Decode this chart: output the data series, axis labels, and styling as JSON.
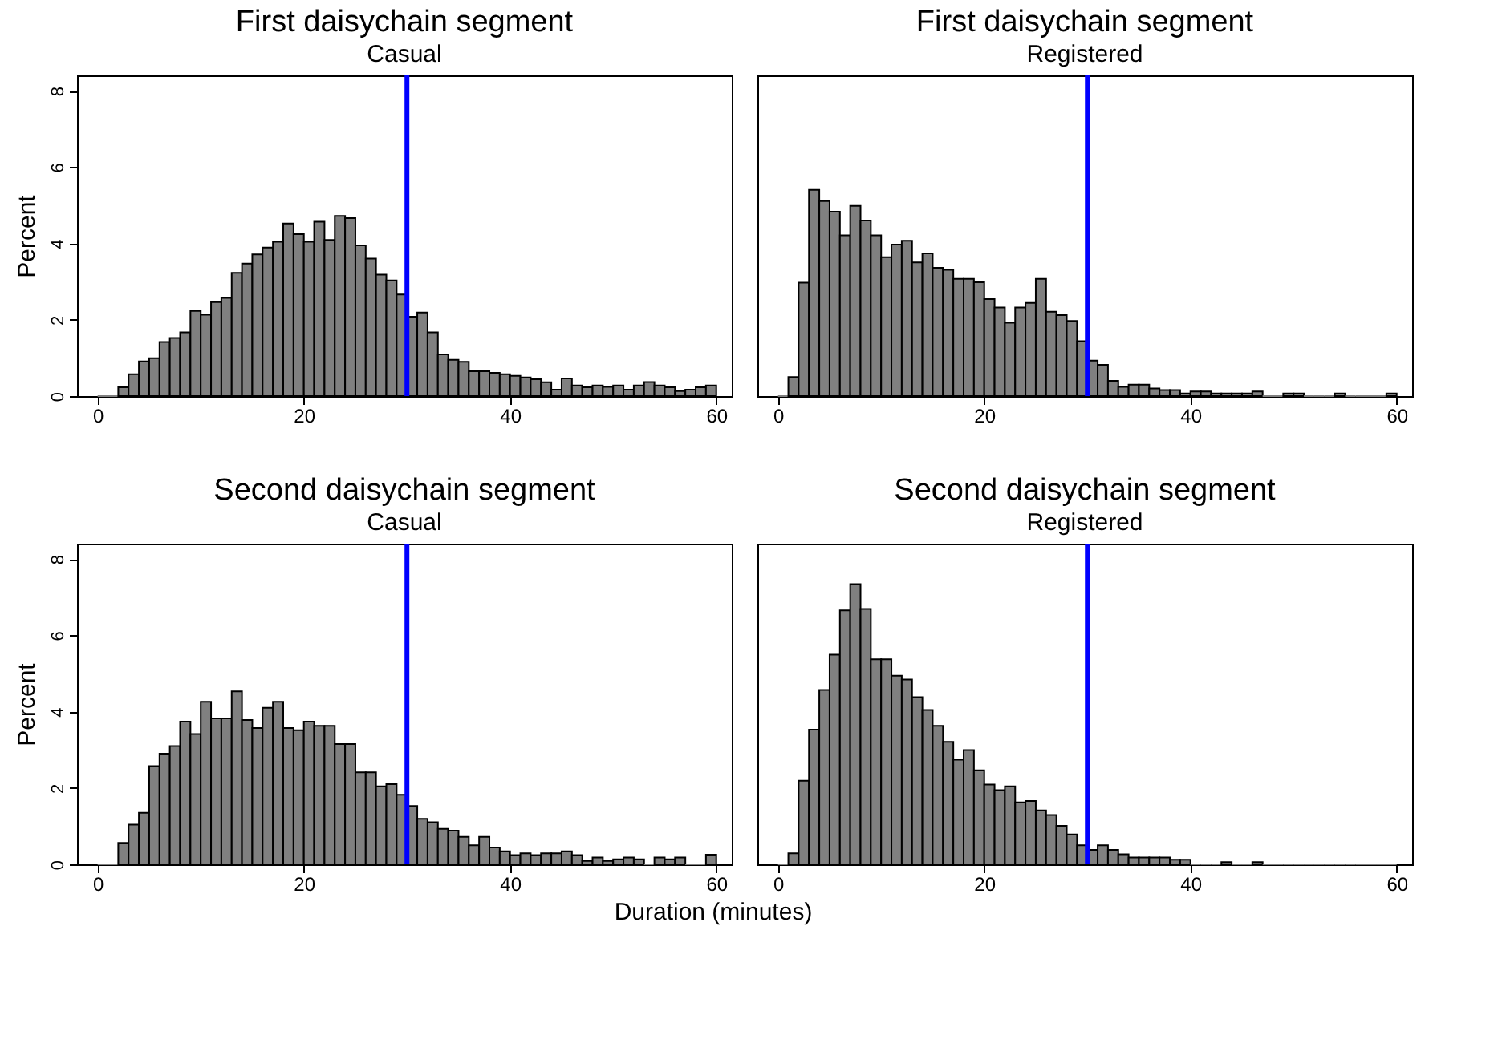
{
  "chart_data": [
    {
      "type": "histogram",
      "title": "First daisychain segment",
      "subtitle": "Casual",
      "ylabel": "Percent",
      "color": "#808080",
      "bins": [
        0,
        1,
        2,
        3,
        4,
        5,
        6,
        7,
        8,
        9,
        10,
        11,
        12,
        13,
        14,
        15,
        16,
        17,
        18,
        19,
        20,
        21,
        22,
        23,
        24,
        25,
        26,
        27,
        28,
        29,
        30,
        31,
        32,
        33,
        34,
        35,
        36,
        37,
        38,
        39,
        40,
        41,
        42,
        43,
        44,
        45,
        46,
        47,
        48,
        49,
        50,
        51,
        52,
        53,
        54,
        55,
        56,
        57,
        58,
        59,
        60
      ],
      "values": [
        0,
        0,
        0.23,
        0.57,
        0.91,
        0.99,
        1.42,
        1.52,
        1.67,
        2.23,
        2.13,
        2.46,
        2.57,
        3.23,
        3.47,
        3.71,
        3.89,
        4.04,
        4.52,
        4.24,
        4.04,
        4.57,
        4.09,
        4.72,
        4.66,
        3.95,
        3.6,
        3.18,
        3.03,
        2.66,
        2.08,
        2.19,
        1.67,
        1.09,
        0.95,
        0.9,
        0.65,
        0.65,
        0.61,
        0.57,
        0.53,
        0.49,
        0.44,
        0.36,
        0.17,
        0.46,
        0.28,
        0.23,
        0.28,
        0.24,
        0.28,
        0.17,
        0.28,
        0.37,
        0.28,
        0.23,
        0.13,
        0.17,
        0.23,
        0.28
      ],
      "xlim": [
        -2,
        61.5
      ],
      "xticks": [
        0,
        20,
        40,
        60
      ],
      "ylim": [
        0,
        8.4
      ],
      "yticks": [
        0,
        2,
        4,
        6,
        8
      ],
      "ref_lines": [
        {
          "axis": "x",
          "value": 30,
          "color": "#0000ff"
        }
      ]
    },
    {
      "type": "histogram",
      "title": "First daisychain segment",
      "subtitle": "Registered",
      "color": "#808080",
      "bins": [
        0,
        1,
        2,
        3,
        4,
        5,
        6,
        7,
        8,
        9,
        10,
        11,
        12,
        13,
        14,
        15,
        16,
        17,
        18,
        19,
        20,
        21,
        22,
        23,
        24,
        25,
        26,
        27,
        28,
        29,
        30,
        31,
        32,
        33,
        34,
        35,
        36,
        37,
        38,
        39,
        40,
        41,
        42,
        43,
        44,
        45,
        46,
        47,
        48,
        49,
        50,
        51,
        52,
        53,
        54,
        55,
        56,
        57,
        58,
        59,
        60
      ],
      "values": [
        0,
        0.5,
        2.97,
        5.4,
        5.11,
        4.83,
        4.21,
        4.98,
        4.6,
        4.21,
        3.64,
        3.97,
        4.07,
        3.5,
        3.74,
        3.36,
        3.31,
        3.07,
        3.07,
        2.98,
        2.54,
        2.32,
        1.92,
        2.32,
        2.44,
        3.07,
        2.21,
        2.12,
        1.97,
        1.44,
        0.93,
        0.82,
        0.4,
        0.24,
        0.3,
        0.3,
        0.2,
        0.16,
        0.16,
        0.07,
        0.12,
        0.12,
        0.07,
        0.07,
        0.07,
        0.07,
        0.12,
        0,
        0,
        0.07,
        0.07,
        0,
        0,
        0,
        0.07,
        0,
        0,
        0,
        0,
        0.07
      ],
      "xlim": [
        -2,
        61.5
      ],
      "xticks": [
        0,
        20,
        40,
        60
      ],
      "ylim": [
        0,
        8.4
      ],
      "yticks": [
        0,
        2,
        4,
        6,
        8
      ],
      "tick_labels": "x",
      "ref_lines": [
        {
          "axis": "x",
          "value": 30,
          "color": "#0000ff"
        }
      ]
    },
    {
      "type": "histogram",
      "title": "Second daisychain segment",
      "subtitle": "Casual",
      "ylabel": "Percent",
      "xlabel": "Duration (minutes)",
      "color": "#808080",
      "bins": [
        0,
        1,
        2,
        3,
        4,
        5,
        6,
        7,
        8,
        9,
        10,
        11,
        12,
        13,
        14,
        15,
        16,
        17,
        18,
        19,
        20,
        21,
        22,
        23,
        24,
        25,
        26,
        27,
        28,
        29,
        30,
        31,
        32,
        33,
        34,
        35,
        36,
        37,
        38,
        39,
        40,
        41,
        42,
        43,
        44,
        45,
        46,
        47,
        48,
        49,
        50,
        51,
        52,
        53,
        54,
        55,
        56,
        57,
        58,
        59,
        60
      ],
      "values": [
        0,
        0,
        0.56,
        1.04,
        1.35,
        2.57,
        2.9,
        3.1,
        3.74,
        3.41,
        4.26,
        3.82,
        3.82,
        4.53,
        3.78,
        3.57,
        4.1,
        4.26,
        3.57,
        3.51,
        3.74,
        3.63,
        3.63,
        3.15,
        3.15,
        2.41,
        2.41,
        2.04,
        2.1,
        1.82,
        1.53,
        1.19,
        1.1,
        0.93,
        0.88,
        0.72,
        0.5,
        0.72,
        0.44,
        0.34,
        0.24,
        0.29,
        0.24,
        0.29,
        0.29,
        0.34,
        0.24,
        0.09,
        0.18,
        0.09,
        0.13,
        0.18,
        0.13,
        0,
        0.18,
        0.13,
        0.18,
        0,
        0,
        0.25
      ],
      "xlim": [
        -2,
        61.5
      ],
      "xticks": [
        0,
        20,
        40,
        60
      ],
      "ylim": [
        0,
        8.4
      ],
      "yticks": [
        0,
        2,
        4,
        6,
        8
      ],
      "ref_lines": [
        {
          "axis": "x",
          "value": 30,
          "color": "#0000ff"
        }
      ]
    },
    {
      "type": "histogram",
      "title": "Second daisychain segment",
      "subtitle": "Registered",
      "color": "#808080",
      "bins": [
        0,
        1,
        2,
        3,
        4,
        5,
        6,
        7,
        8,
        9,
        10,
        11,
        12,
        13,
        14,
        15,
        16,
        17,
        18,
        19,
        20,
        21,
        22,
        23,
        24,
        25,
        26,
        27,
        28,
        29,
        30,
        31,
        32,
        33,
        34,
        35,
        36,
        37,
        38,
        39,
        40,
        41,
        42,
        43,
        44,
        45,
        46,
        47,
        48,
        49,
        50,
        51,
        52,
        53,
        54,
        55,
        56,
        57,
        58,
        59,
        60
      ],
      "values": [
        0,
        0.29,
        2.19,
        3.53,
        4.57,
        5.49,
        6.65,
        7.34,
        6.69,
        5.37,
        5.37,
        4.94,
        4.84,
        4.38,
        4.04,
        3.63,
        3.21,
        2.74,
        2.99,
        2.46,
        2.09,
        1.94,
        2.04,
        1.62,
        1.66,
        1.41,
        1.29,
        1.01,
        0.78,
        0.5,
        0.38,
        0.5,
        0.38,
        0.26,
        0.18,
        0.18,
        0.18,
        0.18,
        0.12,
        0.12,
        0,
        0,
        0,
        0.06,
        0,
        0,
        0.06,
        0,
        0,
        0,
        0,
        0,
        0,
        0,
        0,
        0,
        0,
        0,
        0,
        0
      ],
      "xlim": [
        -2,
        61.5
      ],
      "xticks": [
        0,
        20,
        40,
        60
      ],
      "ylim": [
        0,
        8.4
      ],
      "yticks": [
        0,
        2,
        4,
        6,
        8
      ],
      "tick_labels": "x",
      "ref_lines": [
        {
          "axis": "x",
          "value": 30,
          "color": "#0000ff"
        }
      ]
    }
  ]
}
